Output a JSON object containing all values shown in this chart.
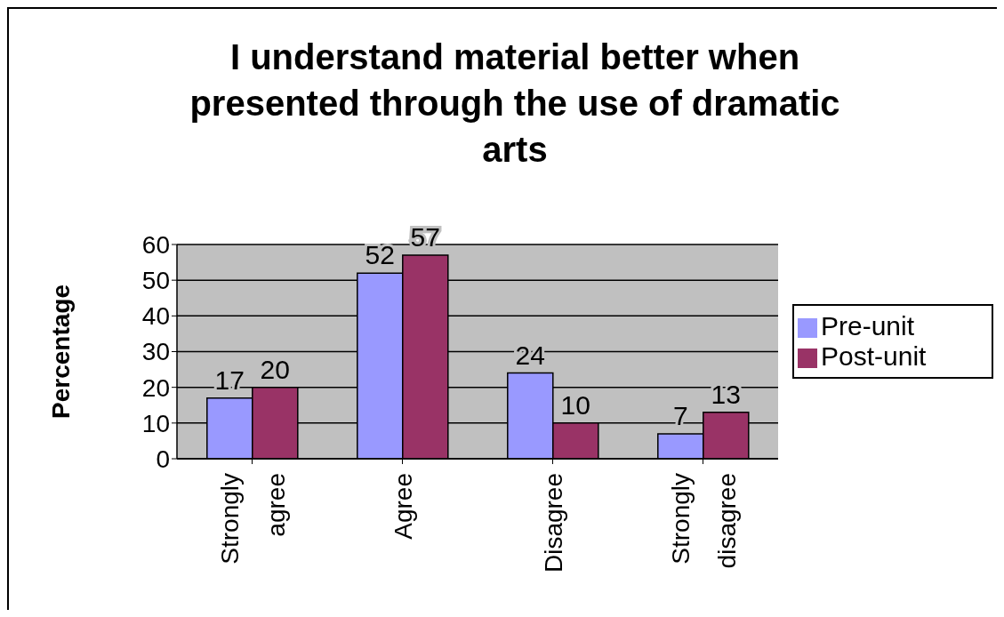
{
  "chart_data": {
    "type": "bar",
    "title": "I understand material better when presented through the use of dramatic arts",
    "ylabel": "Percentage",
    "categories": [
      "Strongly agree",
      "Agree",
      "Disagree",
      "Strongly disagree"
    ],
    "series": [
      {
        "name": "Pre-unit",
        "color": "#9999ff",
        "values": [
          17,
          52,
          24,
          7
        ]
      },
      {
        "name": "Post-unit",
        "color": "#993366",
        "values": [
          20,
          57,
          10,
          13
        ]
      }
    ],
    "ylim": [
      0,
      60
    ],
    "yticks": [
      0,
      10,
      20,
      30,
      40,
      50,
      60
    ],
    "grid": "y",
    "legend": "right",
    "data_labels": true
  }
}
